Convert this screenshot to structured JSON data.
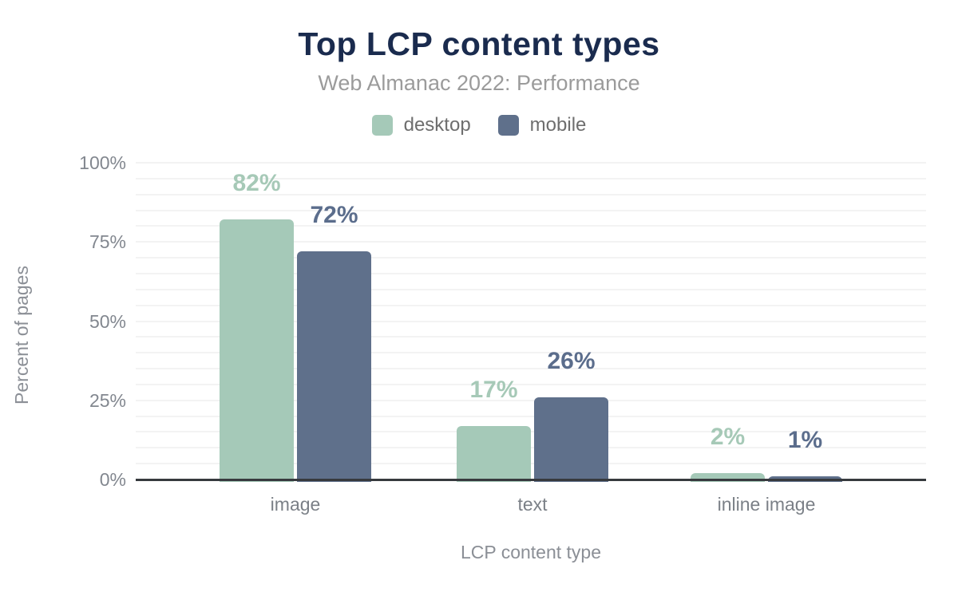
{
  "title": "Top LCP content types",
  "subtitle": "Web Almanac 2022: Performance",
  "colors": {
    "background": "#ffffff",
    "title_text": "#1a2b4e",
    "subtitle_text": "#9b9b9b",
    "legend_text": "#6e6e6e",
    "tick_label_text": "#82878f",
    "category_label_text": "#7b8087",
    "axis_title_text": "#8b8f96",
    "gridline": "#f3f3f3",
    "axis_line": "#373a3e"
  },
  "legend": {
    "items": [
      {
        "label": "desktop",
        "swatch_color": "#a5c9b8"
      },
      {
        "label": "mobile",
        "swatch_color": "#5f708b"
      }
    ]
  },
  "chart_data": {
    "type": "bar",
    "title": "Top LCP content types",
    "subtitle": "Web Almanac 2022: Performance",
    "categories": [
      "image",
      "text",
      "inline image"
    ],
    "series": [
      {
        "name": "desktop",
        "color": "#a5c9b8",
        "label_color": "#a6c9b7",
        "values": [
          82,
          17,
          2
        ],
        "value_labels": [
          "82%",
          "17%",
          "2%"
        ]
      },
      {
        "name": "mobile",
        "color": "#5f708b",
        "label_color": "#5b6d8c",
        "values": [
          72,
          26,
          1
        ],
        "value_labels": [
          "72%",
          "26%",
          "1%"
        ]
      }
    ],
    "xlabel": "LCP content type",
    "ylabel": "Percent of pages",
    "ylim": [
      0,
      100
    ],
    "yticks": [
      0,
      25,
      50,
      75,
      100
    ],
    "ytick_labels": [
      "0%",
      "25%",
      "50%",
      "75%",
      "100%"
    ],
    "grid": "horizontal",
    "grid_step_percent": 5,
    "legend_position": "top"
  }
}
